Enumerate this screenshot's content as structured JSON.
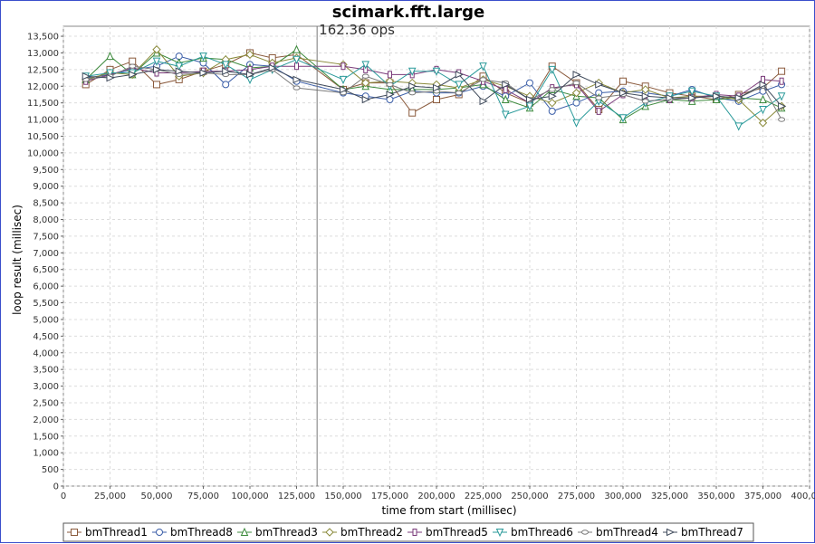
{
  "chart_data": {
    "type": "line",
    "title": "scimark.fft.large",
    "annotation": {
      "text": "162.36 ops",
      "x": 136000
    },
    "xlabel": "time from start (millisec)",
    "ylabel": "loop result (millisec)",
    "xlim": [
      0,
      400000
    ],
    "ylim": [
      0,
      13800
    ],
    "x_ticks": [
      0,
      25000,
      50000,
      75000,
      100000,
      125000,
      150000,
      175000,
      200000,
      225000,
      250000,
      275000,
      300000,
      325000,
      350000,
      375000,
      400000
    ],
    "x_tick_labels": [
      "0",
      "25,000",
      "50,000",
      "75,000",
      "100,000",
      "125,000",
      "150,000",
      "175,000",
      "200,000",
      "225,000",
      "250,000",
      "275,000",
      "300,000",
      "325,000",
      "350,000",
      "375,000",
      "400,000"
    ],
    "y_ticks": [
      0,
      500,
      1000,
      1500,
      2000,
      2500,
      3000,
      3500,
      4000,
      4500,
      5000,
      5500,
      6000,
      6500,
      7000,
      7500,
      8000,
      8500,
      9000,
      9500,
      10000,
      10500,
      11000,
      11500,
      12000,
      12500,
      13000,
      13500
    ],
    "y_tick_labels": [
      "0",
      "500",
      "1,000",
      "1,500",
      "2,000",
      "2,500",
      "3,000",
      "3,500",
      "4,000",
      "4,500",
      "5,000",
      "5,500",
      "6,000",
      "6,500",
      "7,000",
      "7,500",
      "8,000",
      "8,500",
      "9,000",
      "9,500",
      "10,000",
      "10,500",
      "11,000",
      "11,500",
      "12,000",
      "12,500",
      "13,000",
      "13,500"
    ],
    "grid": true,
    "legend_position": "bottom",
    "series": [
      {
        "name": "bmThread1",
        "marker": "square",
        "color": "#8a5a3c",
        "x": [
          12000,
          25000,
          37000,
          50000,
          62000,
          75000,
          87000,
          100000,
          112000,
          125000,
          150000,
          162000,
          175000,
          187000,
          200000,
          212000,
          225000,
          237000,
          250000,
          262000,
          275000,
          287000,
          300000,
          312000,
          325000,
          337000,
          350000,
          362000,
          375000,
          385000
        ],
        "y": [
          12050,
          12500,
          12750,
          12050,
          12200,
          12450,
          12650,
          13000,
          12850,
          12950,
          11900,
          12100,
          12100,
          11200,
          11600,
          11750,
          12300,
          11800,
          11500,
          12600,
          12100,
          11300,
          12150,
          12000,
          11800,
          11700,
          11600,
          11750,
          11950,
          12450
        ]
      },
      {
        "name": "bmThread8",
        "marker": "circle",
        "color": "#3b5ea8",
        "x": [
          12000,
          25000,
          37000,
          50000,
          62000,
          75000,
          87000,
          100000,
          112000,
          125000,
          150000,
          162000,
          175000,
          187000,
          200000,
          212000,
          225000,
          237000,
          250000,
          262000,
          275000,
          287000,
          300000,
          312000,
          325000,
          337000,
          350000,
          362000,
          375000,
          385000
        ],
        "y": [
          12250,
          12350,
          12500,
          12600,
          12900,
          12700,
          12050,
          12650,
          12600,
          12150,
          11800,
          11700,
          11600,
          11850,
          11800,
          11800,
          12000,
          11700,
          12100,
          11250,
          11500,
          11800,
          11850,
          11800,
          11700,
          11900,
          11650,
          11550,
          11850,
          12050
        ]
      },
      {
        "name": "bmThread3",
        "marker": "triangle-up",
        "color": "#3d8a3d",
        "x": [
          12000,
          25000,
          37000,
          50000,
          62000,
          75000,
          87000,
          100000,
          112000,
          125000,
          150000,
          162000,
          175000,
          187000,
          200000,
          212000,
          225000,
          237000,
          250000,
          262000,
          275000,
          287000,
          300000,
          312000,
          325000,
          337000,
          350000,
          362000,
          375000,
          385000
        ],
        "y": [
          12200,
          12900,
          12350,
          13000,
          12700,
          12850,
          12800,
          12550,
          12600,
          13100,
          11900,
          12000,
          11900,
          11900,
          11900,
          11950,
          12050,
          11600,
          11350,
          11900,
          11700,
          11650,
          11000,
          11400,
          11600,
          11550,
          11600,
          11650,
          11600,
          11350
        ]
      },
      {
        "name": "bmThread2",
        "marker": "diamond",
        "color": "#8a8a3a",
        "x": [
          12000,
          25000,
          37000,
          50000,
          62000,
          75000,
          87000,
          100000,
          112000,
          125000,
          150000,
          162000,
          175000,
          187000,
          200000,
          212000,
          225000,
          237000,
          250000,
          262000,
          275000,
          287000,
          300000,
          312000,
          325000,
          337000,
          350000,
          362000,
          375000,
          385000
        ],
        "y": [
          12200,
          12400,
          12350,
          13100,
          12300,
          12400,
          12800,
          12950,
          12700,
          12850,
          12650,
          12100,
          12150,
          12100,
          12050,
          11950,
          12200,
          12000,
          11700,
          11500,
          11800,
          12100,
          11800,
          11900,
          11650,
          11700,
          11700,
          11600,
          10900,
          11400
        ]
      },
      {
        "name": "bmThread5",
        "marker": "rect-vertical",
        "color": "#7a3a7a",
        "x": [
          12000,
          25000,
          37000,
          50000,
          62000,
          75000,
          87000,
          100000,
          112000,
          125000,
          150000,
          162000,
          175000,
          187000,
          200000,
          212000,
          225000,
          237000,
          250000,
          262000,
          275000,
          287000,
          300000,
          312000,
          325000,
          337000,
          350000,
          362000,
          375000,
          385000
        ],
        "y": [
          12150,
          12350,
          12550,
          12400,
          12400,
          12450,
          12450,
          12500,
          12600,
          12600,
          12600,
          12500,
          12350,
          12350,
          12500,
          12400,
          12150,
          11900,
          11500,
          11950,
          12050,
          11250,
          11750,
          11550,
          11600,
          11650,
          11750,
          11700,
          12200,
          12150
        ]
      },
      {
        "name": "bmThread6",
        "marker": "triangle-down",
        "color": "#2a9a9a",
        "x": [
          12000,
          25000,
          37000,
          50000,
          62000,
          75000,
          87000,
          100000,
          112000,
          125000,
          150000,
          162000,
          175000,
          187000,
          200000,
          212000,
          225000,
          237000,
          250000,
          262000,
          275000,
          287000,
          300000,
          312000,
          325000,
          337000,
          350000,
          362000,
          375000,
          385000
        ],
        "y": [
          12300,
          12400,
          12400,
          12750,
          12600,
          12900,
          12650,
          12200,
          12500,
          12800,
          12200,
          12650,
          12000,
          12450,
          12450,
          12050,
          12600,
          11150,
          11400,
          12500,
          10900,
          11550,
          11050,
          11500,
          11700,
          11850,
          11700,
          10800,
          11300,
          11700
        ]
      },
      {
        "name": "bmThread4",
        "marker": "ellipse",
        "color": "#7a7a7a",
        "x": [
          12000,
          25000,
          37000,
          50000,
          62000,
          75000,
          87000,
          100000,
          112000,
          125000,
          150000,
          162000,
          175000,
          187000,
          200000,
          212000,
          225000,
          237000,
          250000,
          262000,
          275000,
          287000,
          300000,
          312000,
          325000,
          337000,
          350000,
          362000,
          375000,
          385000
        ],
        "y": [
          12200,
          12300,
          12600,
          12500,
          12350,
          12400,
          12350,
          12350,
          12500,
          11950,
          11800,
          12300,
          12050,
          11800,
          11850,
          11800,
          12200,
          12100,
          11600,
          11900,
          12100,
          11650,
          11750,
          11550,
          11600,
          11650,
          11700,
          11650,
          12000,
          11000
        ]
      },
      {
        "name": "bmThread7",
        "marker": "triangle-right",
        "color": "#404b5c",
        "x": [
          12000,
          25000,
          37000,
          50000,
          62000,
          75000,
          87000,
          100000,
          112000,
          125000,
          150000,
          162000,
          175000,
          187000,
          200000,
          212000,
          225000,
          237000,
          250000,
          262000,
          275000,
          287000,
          300000,
          312000,
          325000,
          337000,
          350000,
          362000,
          375000,
          385000
        ],
        "y": [
          12300,
          12250,
          12350,
          12500,
          12450,
          12400,
          12450,
          12350,
          12550,
          12200,
          11900,
          11600,
          11750,
          12000,
          11950,
          12350,
          11550,
          12050,
          11600,
          11700,
          12350,
          12050,
          11800,
          11700,
          11650,
          11650,
          11700,
          11650,
          12050,
          11400
        ]
      }
    ]
  }
}
